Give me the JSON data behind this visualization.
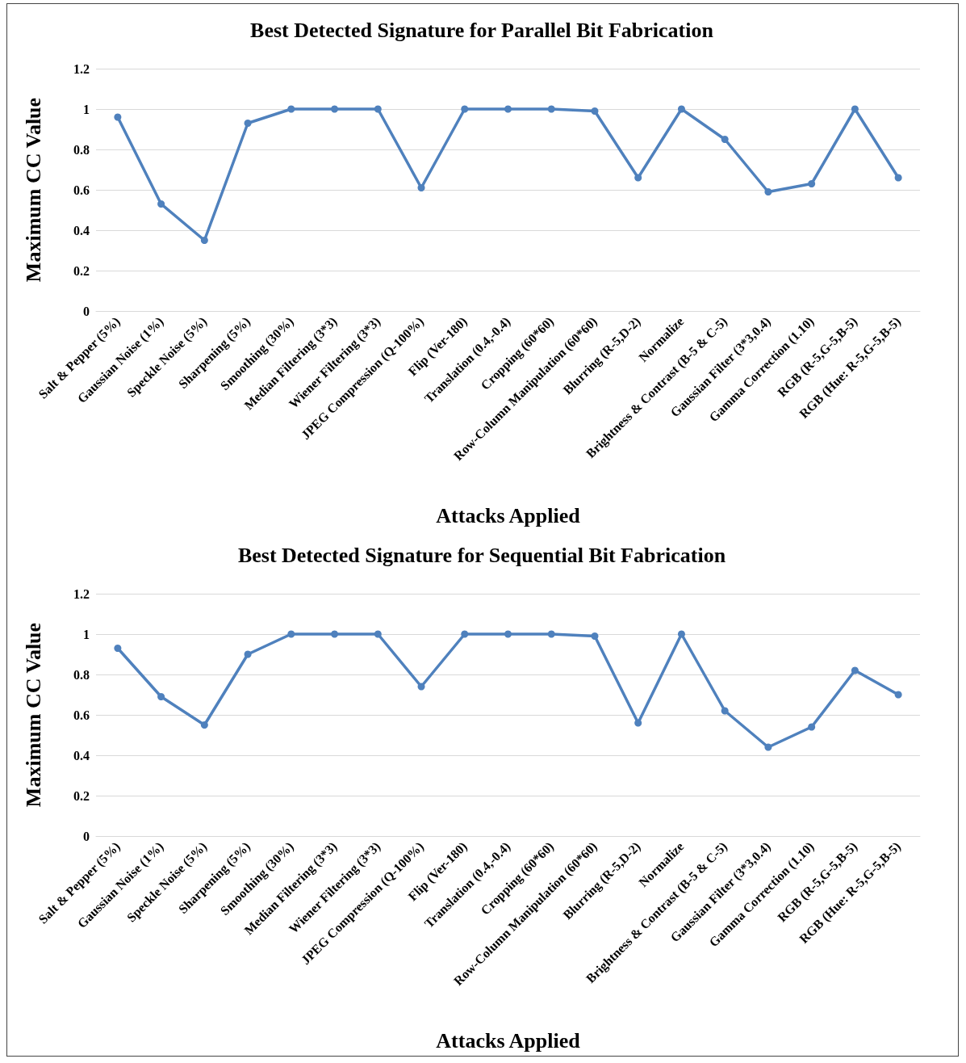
{
  "chart_data": [
    {
      "type": "line",
      "title": "Best Detected Signature for Parallel Bit Fabrication",
      "xlabel": "Attacks Applied",
      "ylabel": "Maximum CC Value",
      "categories": [
        "Salt & Pepper (5%)",
        "Gaussian Noise (1%)",
        "Speckle Noise (5%)",
        "Sharpening (5%)",
        "Smoothing (30%)",
        "Median Filtering (3*3)",
        "Wiener Filtering (3*3)",
        "JPEG Compression (Q-100%)",
        "Flip (Ver-180)",
        "Translation (0.4,-0.4)",
        "Cropping (60*60)",
        "Row-Column Manipulation (60*60)",
        "Blurring (R-5,D-2)",
        "Normalize",
        "Brightness & Contrast (B-5 & C-5)",
        "Gaussian Filter (3*3,0.4)",
        "Gamma Correction (1.10)",
        "RGB (R-5,G-5,B-5)",
        "RGB (Hue: R-5,G-5,B-5)"
      ],
      "series": [
        {
          "color": "#4f81bd",
          "values": [
            0.96,
            0.53,
            0.35,
            0.93,
            1,
            1,
            1,
            0.61,
            1,
            1,
            1,
            0.99,
            0.66,
            1,
            0.85,
            0.59,
            0.63,
            1,
            0.66
          ]
        }
      ],
      "ylim": [
        0,
        1.2
      ],
      "yticks": [
        0,
        0.2,
        0.4,
        0.6,
        0.8,
        1,
        1.2
      ],
      "grid": "y",
      "marker": "circle",
      "line_style": "solid"
    },
    {
      "type": "line",
      "title": "Best Detected Signature for Sequential Bit Fabrication",
      "xlabel": "Attacks Applied",
      "ylabel": "Maximum CC Value",
      "categories": [
        "Salt & Pepper (5%)",
        "Gaussian Noise (1%)",
        "Speckle Noise (5%)",
        "Sharpening (5%)",
        "Smoothing (30%)",
        "Median Filtering (3*3)",
        "Wiener Filtering (3*3)",
        "JPEG Compression (Q-100%)",
        "Flip (Ver-180)",
        "Translation (0.4,-0.4)",
        "Cropping (60*60)",
        "Row-Column Manipulation (60*60)",
        "Blurring (R-5,D-2)",
        "Normalize",
        "Brightness & Contrast (B-5 & C-5)",
        "Gaussian Filter (3*3,0.4)",
        "Gamma Correction (1.10)",
        "RGB (R-5,G-5,B-5)",
        "RGB (Hue: R-5,G-5,B-5)"
      ],
      "series": [
        {
          "color": "#4f81bd",
          "values": [
            0.93,
            0.69,
            0.55,
            0.9,
            1,
            1,
            1,
            0.74,
            1,
            1,
            1,
            0.99,
            0.56,
            1,
            0.62,
            0.44,
            0.54,
            0.82,
            0.7
          ]
        }
      ],
      "ylim": [
        0,
        1.2
      ],
      "yticks": [
        0,
        0.2,
        0.4,
        0.6,
        0.8,
        1,
        1.2
      ],
      "grid": "y",
      "marker": "circle",
      "line_style": "solid"
    }
  ]
}
